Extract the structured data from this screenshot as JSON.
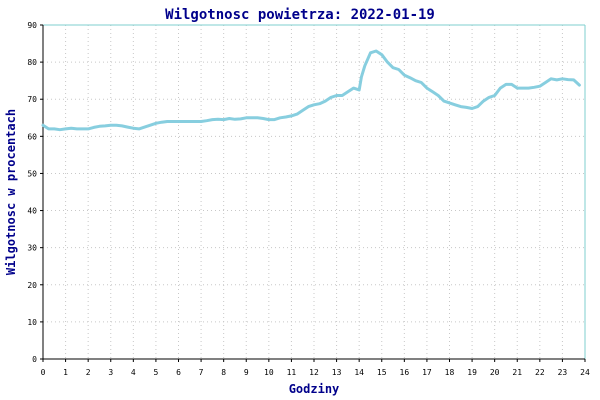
{
  "chart_data": {
    "type": "line",
    "title": "Wilgotnosc powietrza: 2022-01-19",
    "xlabel": "Godziny",
    "ylabel": "Wilgotnosc w procentach",
    "xlim": [
      0,
      24
    ],
    "ylim": [
      0,
      90
    ],
    "x_ticks": [
      "0",
      "1",
      "2",
      "3",
      "4",
      "5",
      "6",
      "7",
      "8",
      "9",
      "10",
      "11",
      "12",
      "13",
      "14",
      "15",
      "16",
      "17",
      "18",
      "19",
      "20",
      "21",
      "22",
      "23",
      "24"
    ],
    "y_ticks": [
      "0",
      "10",
      "20",
      "30",
      "40",
      "50",
      "60",
      "70",
      "80",
      "90"
    ],
    "grid": true,
    "series_color": "#87cedf",
    "series": [
      {
        "x": [
          0,
          0.25,
          0.5,
          0.75,
          1,
          1.25,
          1.5,
          1.75,
          2,
          2.25,
          2.5,
          2.75,
          3,
          3.25,
          3.5,
          3.75,
          4,
          4.25,
          4.5,
          4.75,
          5,
          5.25,
          5.5,
          5.75,
          6,
          6.25,
          6.5,
          6.75,
          7,
          7.25,
          7.5,
          7.75,
          8,
          8.25,
          8.5,
          8.75,
          9,
          9.25,
          9.5,
          9.75,
          10,
          10.25,
          10.5,
          10.75,
          11,
          11.25,
          11.5,
          11.75,
          12,
          12.25,
          12.5,
          12.75,
          13,
          13.25,
          13.5,
          13.75,
          14,
          14.1,
          14.25,
          14.5,
          14.75,
          15,
          15.25,
          15.5,
          15.75,
          16,
          16.25,
          16.5,
          16.75,
          17,
          17.25,
          17.5,
          17.75,
          18,
          18.25,
          18.5,
          18.75,
          19,
          19.25,
          19.5,
          19.75,
          20,
          20.25,
          20.5,
          20.75,
          21,
          21.25,
          21.5,
          21.75,
          22,
          22.25,
          22.5,
          22.75,
          23,
          23.25,
          23.5,
          23.75
        ],
        "y": [
          63,
          62,
          62,
          61.8,
          62,
          62.2,
          62,
          62,
          62,
          62.4,
          62.7,
          62.8,
          63,
          63,
          62.8,
          62.5,
          62.2,
          62,
          62.5,
          63,
          63.5,
          63.8,
          64,
          64,
          64,
          64,
          64,
          64,
          64,
          64.2,
          64.5,
          64.6,
          64.5,
          64.8,
          64.6,
          64.7,
          65,
          65,
          65,
          64.8,
          64.5,
          64.5,
          65,
          65.2,
          65.5,
          66,
          67,
          68,
          68.5,
          68.8,
          69.5,
          70.5,
          71,
          71,
          72,
          73,
          72.5,
          76,
          79,
          82.5,
          83,
          82,
          80,
          78.5,
          78,
          76.5,
          75.8,
          75,
          74.5,
          73,
          72,
          71,
          69.5,
          69,
          68.5,
          68,
          67.8,
          67.5,
          68,
          69.5,
          70.5,
          71,
          73,
          74,
          74,
          73,
          73,
          73,
          73.2,
          73.5,
          74.5,
          75.5,
          75.2,
          75.5,
          75.3,
          75.2,
          73.8
        ]
      }
    ]
  }
}
